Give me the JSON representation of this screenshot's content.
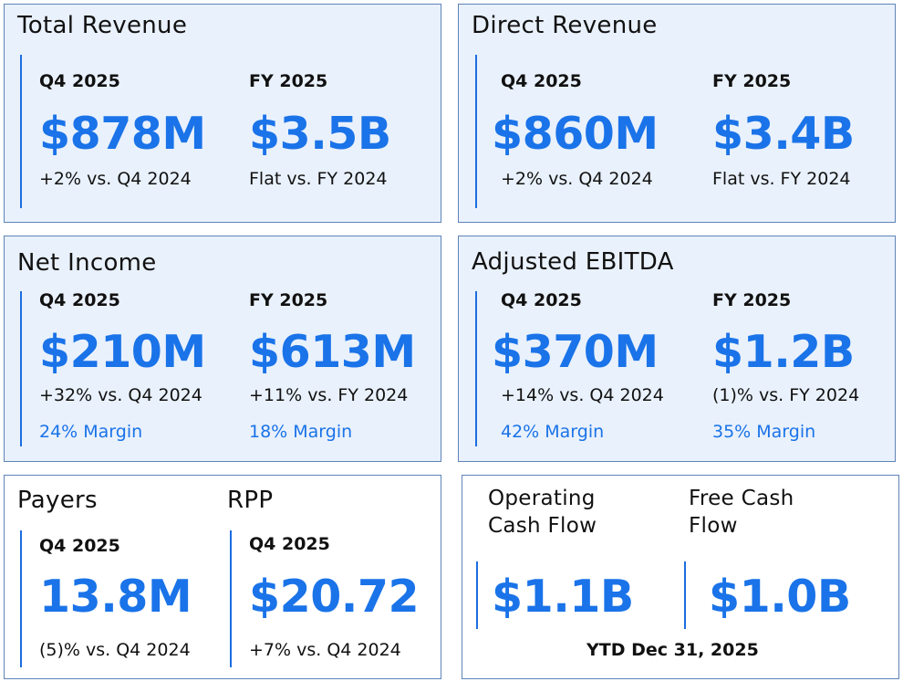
{
  "total_revenue": {
    "title": "Total Revenue",
    "q4": {
      "period": "Q4 2025",
      "value": "$878M",
      "comparison": "+2% vs. Q4 2024"
    },
    "fy": {
      "period": "FY 2025",
      "value": "$3.5B",
      "comparison": "Flat vs. FY 2024"
    }
  },
  "direct_revenue": {
    "title": "Direct Revenue",
    "q4": {
      "period": "Q4 2025",
      "value": "$860M",
      "comparison": "+2% vs. Q4 2024"
    },
    "fy": {
      "period": "FY 2025",
      "value": "$3.4B",
      "comparison": "Flat vs. FY 2024"
    }
  },
  "net_income": {
    "title": "Net Income",
    "q4": {
      "period": "Q4 2025",
      "value": "$210M",
      "comparison": "+32% vs. Q4 2024",
      "margin": "24% Margin"
    },
    "fy": {
      "period": "FY 2025",
      "value": "$613M",
      "comparison": "+11% vs. FY 2024",
      "margin": "18% Margin"
    }
  },
  "adjusted_ebitda": {
    "title": "Adjusted EBITDA",
    "q4": {
      "period": "Q4 2025",
      "value": "$370M",
      "comparison": "+14% vs. Q4 2024",
      "margin": "42% Margin"
    },
    "fy": {
      "period": "FY 2025",
      "value": "$1.2B",
      "comparison": "(1)% vs. FY 2024",
      "margin": "35% Margin"
    }
  },
  "payers": {
    "title": "Payers",
    "q4": {
      "period": "Q4 2025",
      "value": "13.8M",
      "comparison": "(5)% vs. Q4 2024"
    }
  },
  "rpp": {
    "title": "RPP",
    "q4": {
      "period": "Q4 2025",
      "value": "$20.72",
      "comparison": "+7% vs. Q4 2024"
    }
  },
  "cash_flow": {
    "operating_title": "Operating Cash Flow",
    "free_title": "Free Cash Flow",
    "operating_value": "$1.1B",
    "free_value": "$1.0B",
    "footnote": "YTD Dec 31, 2025"
  },
  "colors": {
    "accent": "#1a73e8",
    "card_blue_bg": "#e9f1fc",
    "card_border": "#5f84b8",
    "divider": "#1c6de0"
  }
}
